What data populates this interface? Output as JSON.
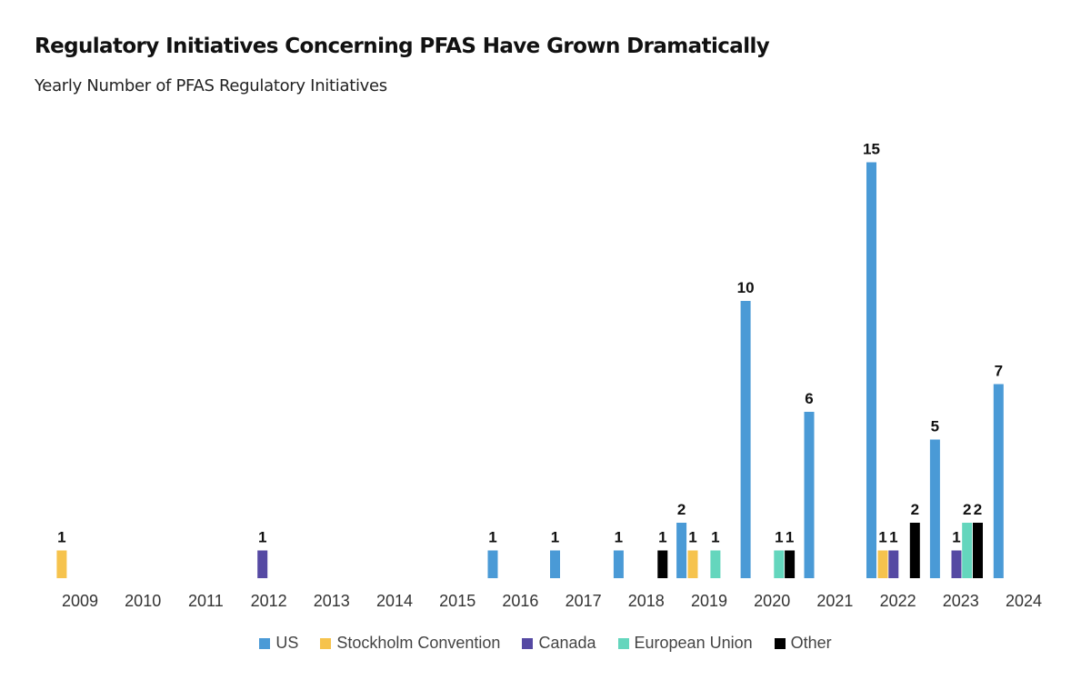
{
  "chart_data": {
    "type": "bar",
    "title": "Regulatory Initiatives Concerning PFAS Have Grown Dramatically",
    "subtitle": "Yearly Number of PFAS Regulatory Initiatives",
    "xlabel": "",
    "ylabel": "",
    "x_tick_labels": [
      "2009",
      "2010",
      "2011",
      "2012",
      "2013",
      "2014",
      "2015",
      "2016",
      "2017",
      "2018",
      "2019",
      "2020",
      "2021",
      "2022",
      "2023",
      "2024"
    ],
    "ylim": [
      0,
      15
    ],
    "grid": false,
    "legend_position": "bottom-center",
    "series": [
      {
        "name": "US",
        "color": "#4a9ad6"
      },
      {
        "name": "Stockholm Convention",
        "color": "#f6c34d"
      },
      {
        "name": "Canada",
        "color": "#5549a3"
      },
      {
        "name": "European Union",
        "color": "#64d6bd"
      },
      {
        "name": "Other",
        "color": "#000000"
      }
    ],
    "bars": [
      {
        "series": "Stockholm Convention",
        "year_position": 2008.71,
        "value": 1
      },
      {
        "series": "Canada",
        "year_position": 2011.9,
        "value": 1
      },
      {
        "series": "US",
        "year_position": 2015.56,
        "value": 1
      },
      {
        "series": "US",
        "year_position": 2016.55,
        "value": 1
      },
      {
        "series": "US",
        "year_position": 2017.56,
        "value": 1
      },
      {
        "series": "Other",
        "year_position": 2018.26,
        "value": 1
      },
      {
        "series": "US",
        "year_position": 2018.56,
        "value": 2
      },
      {
        "series": "Stockholm Convention",
        "year_position": 2018.74,
        "value": 1
      },
      {
        "series": "European Union",
        "year_position": 2019.1,
        "value": 1
      },
      {
        "series": "US",
        "year_position": 2019.58,
        "value": 10
      },
      {
        "series": "European Union",
        "year_position": 2020.11,
        "value": 1
      },
      {
        "series": "Other",
        "year_position": 2020.28,
        "value": 1
      },
      {
        "series": "US",
        "year_position": 2020.59,
        "value": 6
      },
      {
        "series": "US",
        "year_position": 2021.58,
        "value": 15
      },
      {
        "series": "Stockholm Convention",
        "year_position": 2021.76,
        "value": 1
      },
      {
        "series": "Canada",
        "year_position": 2021.93,
        "value": 1
      },
      {
        "series": "Other",
        "year_position": 2022.27,
        "value": 2
      },
      {
        "series": "US",
        "year_position": 2022.59,
        "value": 5
      },
      {
        "series": "Canada",
        "year_position": 2022.93,
        "value": 1
      },
      {
        "series": "European Union",
        "year_position": 2023.1,
        "value": 2
      },
      {
        "series": "Other",
        "year_position": 2023.27,
        "value": 2
      },
      {
        "series": "US",
        "year_position": 2023.6,
        "value": 7
      }
    ]
  }
}
